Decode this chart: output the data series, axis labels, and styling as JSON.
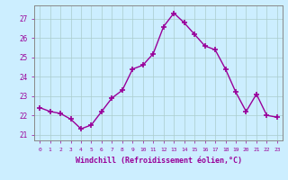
{
  "x": [
    0,
    1,
    2,
    3,
    4,
    5,
    6,
    7,
    8,
    9,
    10,
    11,
    12,
    13,
    14,
    15,
    16,
    17,
    18,
    19,
    20,
    21,
    22,
    23
  ],
  "y": [
    22.4,
    22.2,
    22.1,
    21.8,
    21.3,
    21.5,
    22.2,
    22.9,
    23.3,
    24.4,
    24.6,
    25.2,
    26.6,
    27.3,
    26.8,
    26.2,
    25.6,
    25.4,
    24.4,
    23.2,
    22.2,
    23.1,
    22.0,
    21.9
  ],
  "line_color": "#990099",
  "marker": "+",
  "markersize": 4,
  "linewidth": 1.0,
  "xlabel": "Windchill (Refroidissement éolien,°C)",
  "xlabel_fontsize": 6.0,
  "ylabel_ticks": [
    21,
    22,
    23,
    24,
    25,
    26,
    27
  ],
  "xtick_labels": [
    "0",
    "1",
    "2",
    "3",
    "4",
    "5",
    "6",
    "7",
    "8",
    "9",
    "10",
    "11",
    "12",
    "13",
    "14",
    "15",
    "16",
    "17",
    "18",
    "19",
    "20",
    "21",
    "22",
    "23"
  ],
  "ylim": [
    20.7,
    27.7
  ],
  "xlim": [
    -0.5,
    23.5
  ],
  "background_color": "#cceeff",
  "grid_color": "#aacccc",
  "tick_color": "#990099",
  "spine_color": "#888888"
}
